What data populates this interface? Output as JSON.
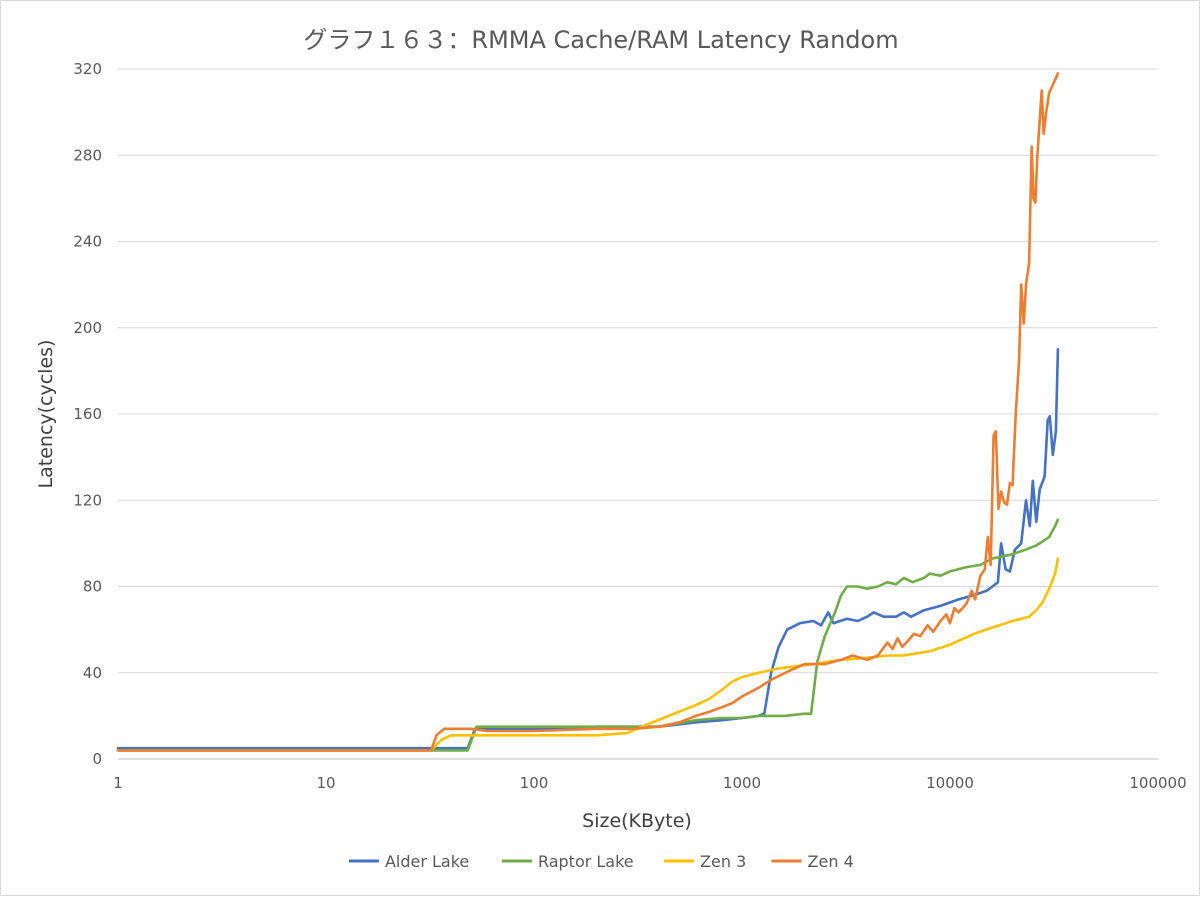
{
  "chart_data": {
    "type": "line",
    "title": "グラフ１６３：RMMA Cache/RAM Latency Random",
    "xlabel": "Size(KByte)",
    "ylabel": "Latency(cycles)",
    "x_scale": "log",
    "xlim": [
      1,
      100000
    ],
    "ylim": [
      0,
      320
    ],
    "x_ticks": [
      1,
      10,
      100,
      1000,
      10000,
      100000
    ],
    "x_tick_labels": [
      "1",
      "10",
      "100",
      "1000",
      "10000",
      "100000"
    ],
    "y_ticks": [
      0,
      40,
      80,
      120,
      160,
      200,
      240,
      280,
      320
    ],
    "y_tick_labels": [
      "0",
      "40",
      "80",
      "120",
      "160",
      "200",
      "240",
      "280",
      "320"
    ],
    "grid": "horizontal",
    "legend_position": "bottom",
    "series": [
      {
        "name": "Alder Lake",
        "color": "#4472c4",
        "points": [
          [
            1,
            5
          ],
          [
            32,
            5
          ],
          [
            34,
            5
          ],
          [
            48,
            5
          ],
          [
            52,
            14
          ],
          [
            100,
            14
          ],
          [
            200,
            15
          ],
          [
            400,
            15
          ],
          [
            600,
            17
          ],
          [
            800,
            18
          ],
          [
            1000,
            19
          ],
          [
            1200,
            20
          ],
          [
            1280,
            21
          ],
          [
            1380,
            40
          ],
          [
            1500,
            52
          ],
          [
            1650,
            60
          ],
          [
            1900,
            63
          ],
          [
            2200,
            64
          ],
          [
            2400,
            62
          ],
          [
            2600,
            68
          ],
          [
            2750,
            63
          ],
          [
            3200,
            65
          ],
          [
            3600,
            64
          ],
          [
            4000,
            66
          ],
          [
            4300,
            68
          ],
          [
            4800,
            66
          ],
          [
            5500,
            66
          ],
          [
            6000,
            68
          ],
          [
            6500,
            66
          ],
          [
            7500,
            69
          ],
          [
            9000,
            71
          ],
          [
            11000,
            74
          ],
          [
            13000,
            76
          ],
          [
            15000,
            78
          ],
          [
            16000,
            80
          ],
          [
            17000,
            82
          ],
          [
            17600,
            100
          ],
          [
            18500,
            88
          ],
          [
            19400,
            87
          ],
          [
            20500,
            97
          ],
          [
            22000,
            100
          ],
          [
            23200,
            120
          ],
          [
            24200,
            108
          ],
          [
            25000,
            129
          ],
          [
            26000,
            110
          ],
          [
            27000,
            125
          ],
          [
            28500,
            131
          ],
          [
            29500,
            157
          ],
          [
            30200,
            159
          ],
          [
            31200,
            141
          ],
          [
            32300,
            152
          ],
          [
            33000,
            190
          ]
        ]
      },
      {
        "name": "Raptor Lake",
        "color": "#70ad47",
        "points": [
          [
            1,
            4
          ],
          [
            48,
            4
          ],
          [
            53,
            15
          ],
          [
            100,
            15
          ],
          [
            200,
            15
          ],
          [
            400,
            15
          ],
          [
            600,
            18
          ],
          [
            800,
            19
          ],
          [
            1000,
            19
          ],
          [
            1200,
            20
          ],
          [
            1600,
            20
          ],
          [
            2000,
            21
          ],
          [
            2150,
            21
          ],
          [
            2300,
            45
          ],
          [
            2500,
            57
          ],
          [
            2800,
            68
          ],
          [
            3000,
            76
          ],
          [
            3200,
            80
          ],
          [
            3600,
            80
          ],
          [
            4000,
            79
          ],
          [
            4500,
            80
          ],
          [
            5000,
            82
          ],
          [
            5500,
            81
          ],
          [
            6000,
            84
          ],
          [
            6600,
            82
          ],
          [
            7500,
            84
          ],
          [
            8000,
            86
          ],
          [
            9000,
            85
          ],
          [
            10000,
            87
          ],
          [
            12000,
            89
          ],
          [
            14000,
            90
          ],
          [
            16000,
            93
          ],
          [
            18000,
            94
          ],
          [
            20000,
            95
          ],
          [
            23000,
            97
          ],
          [
            26000,
            99
          ],
          [
            28000,
            101
          ],
          [
            30000,
            103
          ],
          [
            32000,
            108
          ],
          [
            33000,
            111
          ]
        ]
      },
      {
        "name": "Zen 3",
        "color": "#ffc000",
        "points": [
          [
            1,
            4
          ],
          [
            32,
            4
          ],
          [
            36,
            9
          ],
          [
            40,
            11
          ],
          [
            60,
            11
          ],
          [
            100,
            11
          ],
          [
            200,
            11
          ],
          [
            280,
            12
          ],
          [
            350,
            16
          ],
          [
            420,
            19
          ],
          [
            500,
            22
          ],
          [
            600,
            25
          ],
          [
            700,
            28
          ],
          [
            800,
            32
          ],
          [
            900,
            36
          ],
          [
            1000,
            38
          ],
          [
            1200,
            40
          ],
          [
            1500,
            42
          ],
          [
            1800,
            43
          ],
          [
            2200,
            44
          ],
          [
            3000,
            46
          ],
          [
            4000,
            47
          ],
          [
            5000,
            48
          ],
          [
            6000,
            48
          ],
          [
            8000,
            50
          ],
          [
            10000,
            53
          ],
          [
            13000,
            58
          ],
          [
            16000,
            61
          ],
          [
            20000,
            64
          ],
          [
            24000,
            66
          ],
          [
            26000,
            69
          ],
          [
            28000,
            73
          ],
          [
            30000,
            79
          ],
          [
            32000,
            86
          ],
          [
            33000,
            93
          ]
        ]
      },
      {
        "name": "Zen 4",
        "color": "#ed7d31",
        "points": [
          [
            1,
            4
          ],
          [
            32,
            4
          ],
          [
            34,
            11
          ],
          [
            37,
            14
          ],
          [
            50,
            14
          ],
          [
            60,
            13
          ],
          [
            100,
            13
          ],
          [
            200,
            14
          ],
          [
            300,
            14
          ],
          [
            400,
            15
          ],
          [
            500,
            17
          ],
          [
            600,
            20
          ],
          [
            700,
            22
          ],
          [
            800,
            24
          ],
          [
            900,
            26
          ],
          [
            1000,
            29
          ],
          [
            1200,
            33
          ],
          [
            1400,
            37
          ],
          [
            1700,
            41
          ],
          [
            2000,
            44
          ],
          [
            2500,
            44
          ],
          [
            3000,
            46
          ],
          [
            3400,
            48
          ],
          [
            4000,
            46
          ],
          [
            4500,
            48
          ],
          [
            5000,
            54
          ],
          [
            5300,
            51
          ],
          [
            5600,
            56
          ],
          [
            5900,
            52
          ],
          [
            6300,
            55
          ],
          [
            6700,
            58
          ],
          [
            7200,
            57
          ],
          [
            7800,
            62
          ],
          [
            8300,
            59
          ],
          [
            9000,
            64
          ],
          [
            9600,
            67
          ],
          [
            10000,
            63
          ],
          [
            10500,
            70
          ],
          [
            11000,
            68
          ],
          [
            12000,
            72
          ],
          [
            12700,
            78
          ],
          [
            13200,
            74
          ],
          [
            14000,
            85
          ],
          [
            14700,
            88
          ],
          [
            15200,
            103
          ],
          [
            15700,
            90
          ],
          [
            16200,
            150
          ],
          [
            16600,
            152
          ],
          [
            17100,
            116
          ],
          [
            17600,
            124
          ],
          [
            18200,
            119
          ],
          [
            18800,
            118
          ],
          [
            19400,
            128
          ],
          [
            20000,
            127
          ],
          [
            20700,
            160
          ],
          [
            21500,
            185
          ],
          [
            22000,
            220
          ],
          [
            22600,
            202
          ],
          [
            23200,
            220
          ],
          [
            24000,
            230
          ],
          [
            24700,
            284
          ],
          [
            25200,
            260
          ],
          [
            25700,
            258
          ],
          [
            26300,
            280
          ],
          [
            27000,
            296
          ],
          [
            27600,
            310
          ],
          [
            28200,
            290
          ],
          [
            29000,
            300
          ],
          [
            30000,
            309
          ],
          [
            31000,
            312
          ],
          [
            32000,
            315
          ],
          [
            33000,
            318
          ]
        ]
      }
    ]
  }
}
